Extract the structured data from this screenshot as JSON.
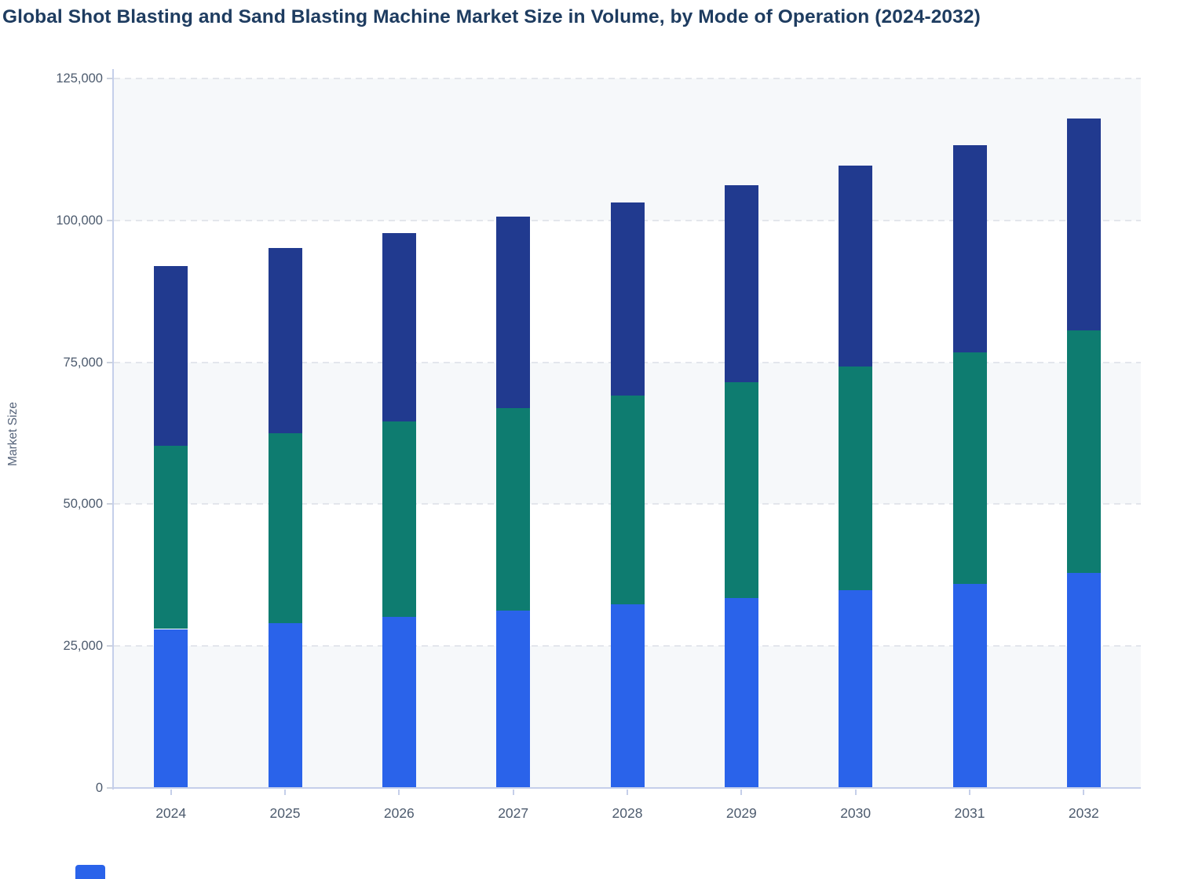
{
  "chart_data": {
    "type": "bar",
    "stacked": true,
    "title": "Global Shot Blasting and Sand Blasting Machine Market Size in Volume, by Mode of Operation (2024-2032)",
    "xlabel": "",
    "ylabel": "Market Size",
    "categories": [
      "2024",
      "2025",
      "2026",
      "2027",
      "2028",
      "2029",
      "2030",
      "2031",
      "2032"
    ],
    "series": [
      {
        "name": "blue-bottom-segment",
        "color": "#2a63ea",
        "values": [
          28000,
          29100,
          30200,
          31300,
          32400,
          33400,
          34900,
          36000,
          37900
        ]
      },
      {
        "name": "teal-middle-segment",
        "color": "#0e7c70",
        "values": [
          32300,
          33400,
          34400,
          35600,
          36800,
          38100,
          39300,
          40700,
          42700
        ]
      },
      {
        "name": "navy-top-segment",
        "color": "#213a8f",
        "values": [
          31700,
          32700,
          33200,
          33700,
          33900,
          34700,
          35500,
          36500,
          37400
        ]
      }
    ],
    "totals": [
      92000,
      95200,
      97800,
      100600,
      103100,
      106200,
      109700,
      113200,
      118000
    ],
    "ylim": [
      0,
      125000
    ],
    "ytick_interval": 25000,
    "ytick_labels": [
      "0",
      "25,000",
      "50,000",
      "75,000",
      "100,000",
      "125,000"
    ],
    "grid": "horizontal dashed, alternating shaded bands",
    "legend_position": "bottom-left, cut off at image edge (only first swatch sliver visible)",
    "style_colors": {
      "title_text": "#1e3c60",
      "axis_label_text": "#4d5b6e",
      "axis_line": "#c5cfea",
      "grid_line": "#e3e6ec",
      "plot_band": "#f6f8fa",
      "legend_swatch": "#2a63ea"
    }
  }
}
